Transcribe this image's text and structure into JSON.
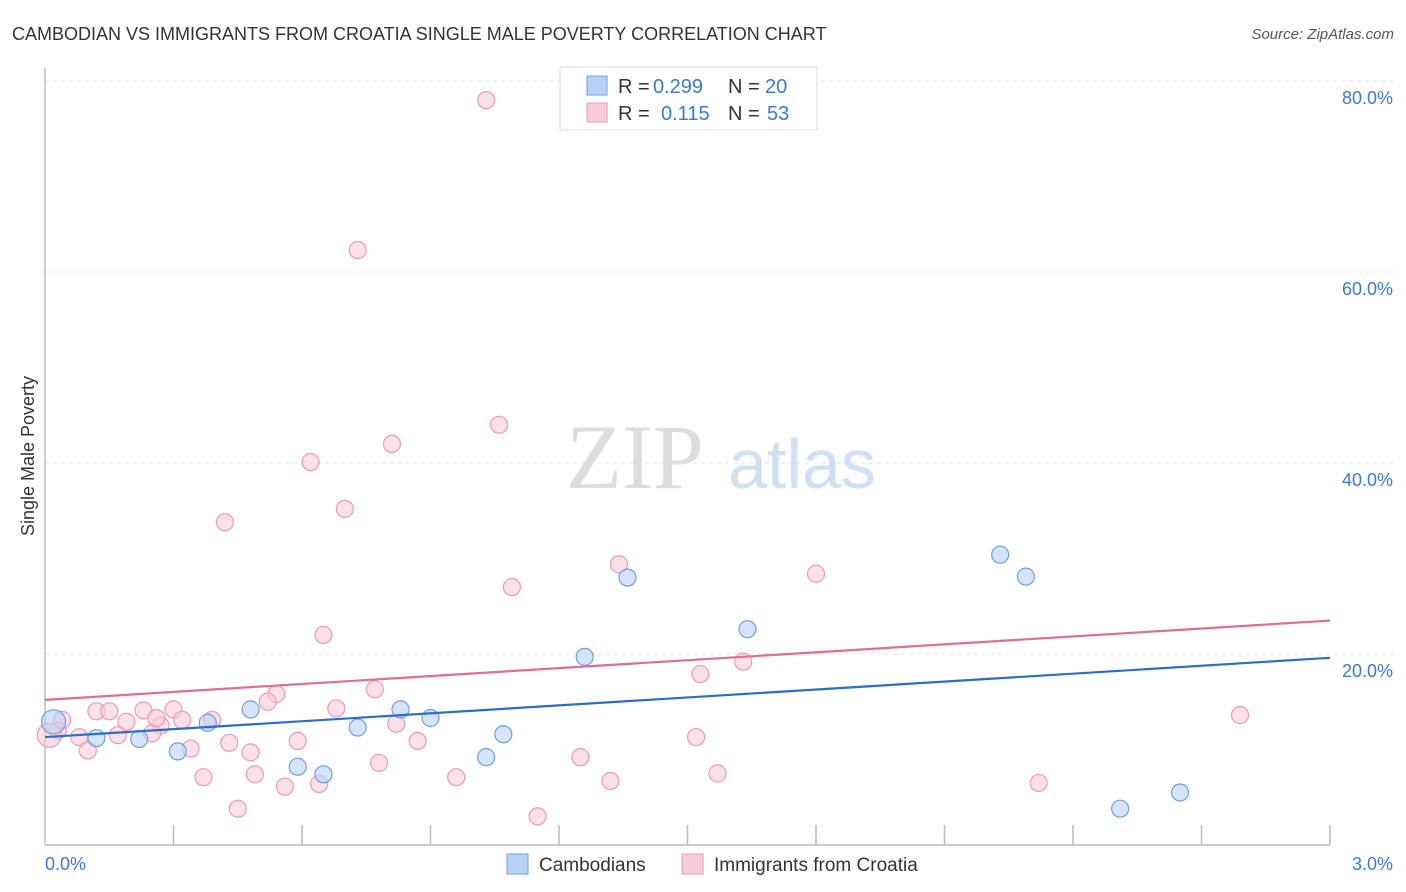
{
  "chart_data": {
    "type": "scatter",
    "title": "CAMBODIAN VS IMMIGRANTS FROM CROATIA SINGLE MALE POVERTY CORRELATION CHART",
    "source": "Source: ZipAtlas.com",
    "xlabel": "",
    "ylabel": "Single Male Poverty",
    "xlim": [
      0,
      3.0
    ],
    "ylim": [
      0,
      80
    ],
    "x_tick_labels": [
      "0.0%",
      "3.0%"
    ],
    "y_ticks": [
      20,
      40,
      60,
      80
    ],
    "y_tick_labels": [
      "20.0%",
      "40.0%",
      "60.0%",
      "80.0%"
    ],
    "grid": true,
    "watermark": "ZIPatlas",
    "legend": [
      {
        "r_label": "R =",
        "r": "0.299",
        "n_label": "N =",
        "n": "20"
      },
      {
        "r_label": "R =",
        "r": "0.115",
        "n_label": "N =",
        "n": "53"
      }
    ],
    "series": [
      {
        "name": "Cambodians",
        "color": "#6fa0e0",
        "fill": "#b9d2f3",
        "line_color": "#2a6dd0",
        "trend": [
          [
            0,
            11.3
          ],
          [
            3.0,
            19.6
          ]
        ],
        "points": [
          [
            0.02,
            12.9
          ],
          [
            0.12,
            11.2
          ],
          [
            0.22,
            11.1
          ],
          [
            0.31,
            9.8
          ],
          [
            0.38,
            12.8
          ],
          [
            0.48,
            14.2
          ],
          [
            0.59,
            8.2
          ],
          [
            0.65,
            7.4
          ],
          [
            0.73,
            12.3
          ],
          [
            0.83,
            14.2
          ],
          [
            0.9,
            13.3
          ],
          [
            1.03,
            9.2
          ],
          [
            1.07,
            11.6
          ],
          [
            1.26,
            19.7
          ],
          [
            1.36,
            28.0
          ],
          [
            1.64,
            22.6
          ],
          [
            2.23,
            30.4
          ],
          [
            2.29,
            28.1
          ],
          [
            2.51,
            3.8
          ],
          [
            2.65,
            5.5
          ]
        ]
      },
      {
        "name": "Immigrants from Croatia",
        "color": "#ec9ab5",
        "fill": "#f8cbd9",
        "line_color": "#e46c94",
        "trend": [
          [
            0,
            15.2
          ],
          [
            3.0,
            23.5
          ]
        ],
        "points": [
          [
            1.03,
            78.0
          ],
          [
            0.73,
            62.3
          ],
          [
            1.06,
            44.0
          ],
          [
            0.81,
            42.0
          ],
          [
            0.62,
            40.1
          ],
          [
            0.7,
            35.2
          ],
          [
            0.42,
            33.8
          ],
          [
            1.09,
            27.0
          ],
          [
            1.34,
            29.4
          ],
          [
            1.8,
            28.4
          ],
          [
            0.65,
            22.0
          ],
          [
            1.63,
            19.2
          ],
          [
            1.53,
            17.9
          ],
          [
            0.54,
            15.8
          ],
          [
            0.52,
            15.0
          ],
          [
            0.77,
            16.3
          ],
          [
            2.79,
            13.6
          ],
          [
            0.03,
            12.0
          ],
          [
            0.04,
            13.1
          ],
          [
            0.12,
            14.0
          ],
          [
            0.15,
            14.0
          ],
          [
            0.23,
            14.1
          ],
          [
            0.3,
            14.2
          ],
          [
            0.39,
            13.1
          ],
          [
            0.19,
            12.9
          ],
          [
            0.32,
            13.1
          ],
          [
            0.27,
            12.5
          ],
          [
            0.17,
            11.5
          ],
          [
            0.25,
            11.7
          ],
          [
            0.08,
            11.3
          ],
          [
            0.1,
            9.9
          ],
          [
            0.34,
            10.1
          ],
          [
            0.43,
            10.7
          ],
          [
            0.48,
            9.7
          ],
          [
            0.59,
            10.9
          ],
          [
            0.68,
            14.3
          ],
          [
            0.82,
            12.7
          ],
          [
            0.87,
            10.9
          ],
          [
            1.52,
            11.3
          ],
          [
            1.25,
            9.2
          ],
          [
            0.78,
            8.6
          ],
          [
            0.37,
            7.1
          ],
          [
            0.49,
            7.4
          ],
          [
            0.64,
            6.4
          ],
          [
            0.56,
            6.1
          ],
          [
            0.96,
            7.1
          ],
          [
            1.57,
            7.5
          ],
          [
            1.32,
            6.7
          ],
          [
            2.32,
            6.5
          ],
          [
            0.45,
            3.8
          ],
          [
            1.15,
            3.0
          ],
          [
            0.26,
            13.3
          ],
          [
            0.01,
            11.5
          ]
        ]
      }
    ]
  }
}
